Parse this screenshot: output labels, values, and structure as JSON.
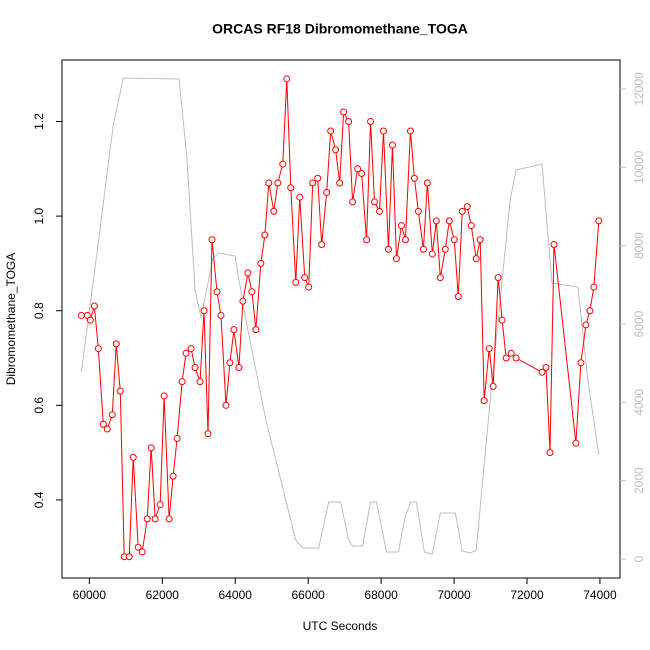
{
  "chart_data": {
    "type": "line",
    "title": "ORCAS RF18 Dibromomethane_TOGA",
    "xlabel": "UTC Seconds",
    "ylabel": "Dibromomethane_TOGA",
    "xlim": [
      59250,
      74550
    ],
    "xticks": [
      60000,
      62000,
      64000,
      66000,
      68000,
      70000,
      72000,
      74000
    ],
    "ylim": [
      0.235,
      1.33
    ],
    "yticks": [
      0.4,
      0.6,
      0.8,
      {
        "value": 1,
        "label": "1.0"
      },
      1.2
    ],
    "y2lim": [
      -485,
      12740
    ],
    "y2ticks": [
      0,
      2000,
      4000,
      6000,
      8000,
      10000,
      12000
    ],
    "series": [
      {
        "color": "#ff0000",
        "markers": true,
        "x": [
          59781,
          59945,
          60027,
          60137,
          60246,
          60383,
          60492,
          60629,
          60738,
          60848,
          60957,
          61094,
          61203,
          61340,
          61449,
          61586,
          61695,
          61804,
          61941,
          62051,
          62187,
          62297,
          62406,
          62543,
          62652,
          62789,
          62898,
          63035,
          63144,
          63253,
          63363,
          63500,
          63609,
          63746,
          63855,
          63964,
          64101,
          64210,
          64347,
          64457,
          64566,
          64703,
          64812,
          64921,
          65058,
          65167,
          65304,
          65414,
          65523,
          65660,
          65769,
          65906,
          66015,
          66124,
          66261,
          66370,
          66507,
          66617,
          66753,
          66863,
          66972,
          67108,
          67218,
          67355,
          67464,
          67601,
          67710,
          67819,
          67956,
          68065,
          68202,
          68311,
          68421,
          68558,
          68667,
          68804,
          68913,
          69022,
          69159,
          69268,
          69405,
          69514,
          69624,
          69760,
          69870,
          70006,
          70116,
          70225,
          70362,
          70471,
          70608,
          70717,
          70826,
          70963,
          71072,
          71209,
          71318,
          71428,
          71565,
          71701,
          72412,
          72521,
          72631,
          72740,
          73341,
          73478,
          73615,
          73724,
          73833,
          73970
        ],
        "values": [
          0.79,
          0.79,
          0.78,
          0.81,
          0.72,
          0.56,
          0.55,
          0.58,
          0.73,
          0.63,
          0.28,
          0.28,
          0.49,
          0.3,
          0.29,
          0.36,
          0.51,
          0.36,
          0.39,
          0.62,
          0.36,
          0.45,
          0.53,
          0.65,
          0.71,
          0.72,
          0.68,
          0.65,
          0.8,
          0.54,
          0.95,
          0.84,
          0.79,
          0.6,
          0.69,
          0.76,
          0.68,
          0.82,
          0.88,
          0.84,
          0.76,
          0.9,
          0.96,
          1.07,
          1.01,
          1.07,
          1.11,
          1.29,
          1.06,
          0.86,
          1.04,
          0.87,
          0.85,
          1.07,
          1.08,
          0.94,
          1.05,
          1.18,
          1.14,
          1.07,
          1.22,
          1.2,
          1.03,
          1.1,
          1.09,
          0.95,
          1.2,
          1.03,
          1.01,
          1.18,
          0.93,
          1.15,
          0.91,
          0.98,
          0.95,
          1.18,
          1.08,
          1.01,
          0.93,
          1.07,
          0.92,
          0.99,
          0.87,
          0.93,
          0.99,
          0.95,
          0.83,
          1.01,
          1.02,
          0.98,
          0.91,
          0.95,
          0.61,
          0.72,
          0.64,
          0.87,
          0.78,
          0.7,
          0.71,
          0.7,
          0.67,
          0.68,
          0.5,
          0.94,
          0.52,
          0.69,
          0.77,
          0.8,
          0.85,
          0.99
        ]
      },
      {
        "color": "#bebebe",
        "axis": "y2",
        "markers": false,
        "x": [
          59781,
          60219,
          60656,
          60930,
          62461,
          62679,
          62898,
          63062,
          63390,
          63554,
          63992,
          64292,
          64839,
          65386,
          65660,
          65851,
          66288,
          66425,
          66562,
          66890,
          67108,
          67218,
          67491,
          67710,
          67874,
          68147,
          68475,
          68639,
          68804,
          68968,
          69186,
          69405,
          69624,
          70034,
          70225,
          70444,
          70608,
          70991,
          71537,
          71701,
          72412,
          72685,
          73396,
          73670,
          73970
        ],
        "values": [
          4774,
          7889,
          11080,
          12280,
          12254,
          10186,
          6868,
          6153,
          7685,
          7812,
          7736,
          6102,
          3549,
          1506,
          485,
          281,
          281,
          868,
          1455,
          1455,
          485,
          332,
          332,
          1455,
          1455,
          179,
          179,
          996,
          1455,
          1455,
          179,
          128,
          1174,
          1174,
          204,
          153,
          230,
          4059,
          9165,
          9931,
          10084,
          7046,
          6944,
          4570,
          2655
        ]
      }
    ]
  }
}
